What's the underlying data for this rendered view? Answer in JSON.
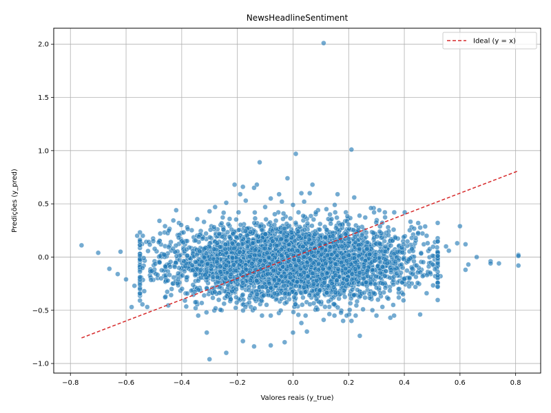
{
  "chart_data": {
    "type": "scatter",
    "title": "NewsHeadlineSentiment",
    "xlabel": "Valores reais (y_true)",
    "ylabel": "Predições (y_pred)",
    "xlim": [
      -0.86,
      0.89
    ],
    "ylim": [
      -1.09,
      2.15
    ],
    "x_ticks": [
      -0.8,
      -0.6,
      -0.4,
      -0.2,
      0.0,
      0.2,
      0.4,
      0.6,
      0.8
    ],
    "x_tick_labels": [
      "−0.8",
      "−0.6",
      "−0.4",
      "−0.2",
      "0.0",
      "0.2",
      "0.4",
      "0.6",
      "0.8"
    ],
    "y_ticks": [
      -1.0,
      -0.5,
      0.0,
      0.5,
      1.0,
      1.5,
      2.0
    ],
    "y_tick_labels": [
      "−1.0",
      "−0.5",
      "0.0",
      "0.5",
      "1.0",
      "1.5",
      "2.0"
    ],
    "grid": true,
    "legend_position": "top-right",
    "colors": {
      "points": "#1f77b4",
      "ideal_line": "#d62728",
      "grid": "#b0b0b0"
    },
    "series": [
      {
        "type": "line",
        "name": "Ideal (y = x)",
        "style": "dashed",
        "x": [
          -0.76,
          0.81
        ],
        "y": [
          -0.76,
          0.81
        ]
      },
      {
        "type": "scatter",
        "distribution": {
          "count": 4000,
          "x_mean": 0.0,
          "x_std": 0.22,
          "y_mean": -0.05,
          "y_std": 0.17
        },
        "points": [
          [
            0.11,
            2.01
          ],
          [
            0.21,
            1.01
          ],
          [
            0.01,
            0.97
          ],
          [
            -0.12,
            0.89
          ],
          [
            -0.02,
            0.74
          ],
          [
            -0.21,
            0.68
          ],
          [
            0.07,
            0.68
          ],
          [
            -0.18,
            0.66
          ],
          [
            -0.13,
            0.68
          ],
          [
            -0.14,
            0.65
          ],
          [
            0.03,
            0.6
          ],
          [
            0.06,
            0.6
          ],
          [
            0.16,
            0.59
          ],
          [
            -0.19,
            0.59
          ],
          [
            -0.05,
            0.59
          ],
          [
            0.22,
            0.56
          ],
          [
            -0.24,
            0.51
          ],
          [
            0.29,
            0.46
          ],
          [
            -0.76,
            0.11
          ],
          [
            -0.7,
            0.04
          ],
          [
            -0.66,
            -0.11
          ],
          [
            -0.63,
            -0.16
          ],
          [
            -0.62,
            0.05
          ],
          [
            -0.6,
            -0.21
          ],
          [
            -0.58,
            -0.47
          ],
          [
            -0.57,
            -0.27
          ],
          [
            -0.56,
            0.2
          ],
          [
            -0.54,
            0.2
          ],
          [
            -0.55,
            -0.29
          ],
          [
            -0.48,
            0.34
          ],
          [
            -0.46,
            0.29
          ],
          [
            -0.43,
            -0.25
          ],
          [
            -0.42,
            0.44
          ],
          [
            -0.41,
            0.32
          ],
          [
            -0.38,
            0.28
          ],
          [
            -0.36,
            -0.31
          ],
          [
            -0.35,
            -0.48
          ],
          [
            -0.31,
            -0.71
          ],
          [
            -0.3,
            -0.96
          ],
          [
            -0.24,
            -0.9
          ],
          [
            -0.18,
            -0.79
          ],
          [
            -0.14,
            -0.84
          ],
          [
            -0.08,
            -0.83
          ],
          [
            -0.03,
            -0.8
          ],
          [
            0.0,
            -0.71
          ],
          [
            0.03,
            -0.62
          ],
          [
            0.05,
            -0.7
          ],
          [
            0.11,
            -0.59
          ],
          [
            0.18,
            -0.6
          ],
          [
            0.21,
            -0.6
          ],
          [
            0.24,
            -0.74
          ],
          [
            0.35,
            -0.57
          ],
          [
            0.36,
            -0.45
          ],
          [
            0.38,
            -0.38
          ],
          [
            0.48,
            -0.34
          ],
          [
            0.52,
            -0.24
          ],
          [
            0.53,
            -0.18
          ],
          [
            0.44,
            -0.28
          ],
          [
            0.81,
            0.02
          ],
          [
            0.81,
            -0.08
          ],
          [
            0.81,
            0.01
          ],
          [
            0.74,
            -0.06
          ],
          [
            0.71,
            -0.04
          ],
          [
            0.71,
            -0.06
          ],
          [
            0.66,
            0.0
          ],
          [
            0.63,
            -0.07
          ],
          [
            0.62,
            0.12
          ],
          [
            0.6,
            0.29
          ],
          [
            0.59,
            0.13
          ],
          [
            0.62,
            -0.12
          ],
          [
            0.56,
            0.06
          ],
          [
            0.55,
            0.1
          ],
          [
            0.51,
            0.14
          ],
          [
            0.48,
            0.2
          ],
          [
            0.47,
            0.12
          ],
          [
            0.45,
            0.32
          ],
          [
            0.33,
            0.42
          ],
          [
            0.31,
            0.44
          ],
          [
            0.28,
            0.46
          ],
          [
            0.19,
            0.42
          ],
          [
            0.15,
            0.49
          ],
          [
            0.12,
            0.45
          ],
          [
            0.09,
            0.44
          ],
          [
            0.04,
            0.52
          ],
          [
            0.0,
            0.49
          ],
          [
            -0.04,
            0.52
          ],
          [
            -0.08,
            0.55
          ],
          [
            -0.1,
            0.47
          ],
          [
            -0.17,
            0.53
          ],
          [
            -0.28,
            0.47
          ],
          [
            -0.3,
            0.43
          ],
          [
            -0.32,
            0.33
          ],
          [
            -0.48,
            0.15
          ]
        ]
      }
    ]
  }
}
